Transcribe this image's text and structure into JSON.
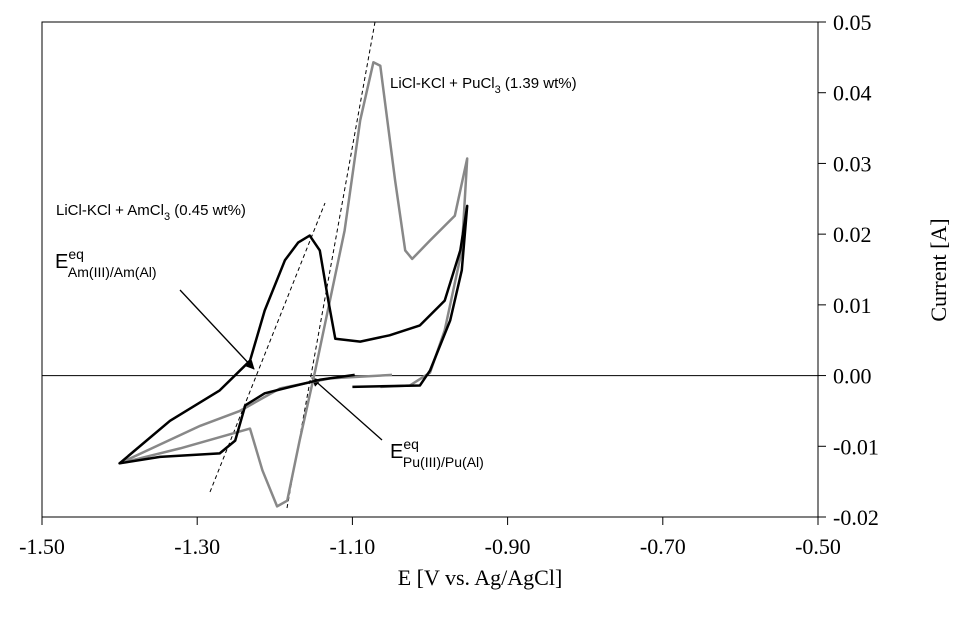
{
  "chart_data": {
    "type": "line",
    "xlabel": "E [V vs. Ag/AgCl]",
    "ylabel": "Current  [A]",
    "xlim": [
      -1.5,
      -0.5
    ],
    "xticks": [
      {
        "value": -1.5,
        "label": "-1.50"
      },
      {
        "value": -1.3,
        "label": "-1.30"
      },
      {
        "value": -1.1,
        "label": "-1.10"
      },
      {
        "value": -0.9,
        "label": "-0.90"
      },
      {
        "value": -0.7,
        "label": "-0.70"
      },
      {
        "value": -0.5,
        "label": "-0.50"
      }
    ],
    "ylim": [
      -0.02,
      0.05
    ],
    "yticks": [
      -0.02,
      -0.01,
      {
        "value": 0,
        "label": "0.00"
      },
      0.01,
      0.02,
      0.03,
      0.04,
      0.05
    ],
    "series": [
      {
        "color": "#888888",
        "x": [
          -1.049,
          -1.129,
          -1.193,
          -1.245,
          -1.296,
          -1.4,
          -1.322,
          -1.232,
          -1.216,
          -1.197,
          -1.184,
          -1.168,
          -1.148,
          -1.129,
          -1.11,
          -1.09,
          -1.073,
          -1.064,
          -1.045,
          -1.032,
          -1.023,
          -1.0,
          -0.968,
          -0.952,
          -0.959,
          -0.981,
          -1.0,
          -1.026,
          -1.064
        ],
        "values": [
          0.0001,
          -0.0004,
          -0.0018,
          -0.005,
          -0.0071,
          -0.0124,
          -0.0103,
          -0.0075,
          -0.0134,
          -0.0185,
          -0.0177,
          -0.0092,
          0.0007,
          0.0106,
          0.0205,
          0.0361,
          0.0443,
          0.0438,
          0.0276,
          0.0177,
          0.0165,
          0.0191,
          0.0226,
          0.0307,
          0.0177,
          0.0064,
          0.0004,
          -0.0014,
          -0.0016
        ]
      },
      {
        "color": "#000000",
        "x": [
          -1.1,
          -1.013,
          -1.0,
          -0.974,
          -0.959,
          -0.952,
          -0.961,
          -0.981,
          -1.013,
          -1.052,
          -1.09,
          -1.122,
          -1.131,
          -1.142,
          -1.155,
          -1.17,
          -1.187,
          -1.213,
          -1.232,
          -1.271,
          -1.335,
          -1.4,
          -1.348,
          -1.271,
          -1.251,
          -1.238,
          -1.213,
          -1.18,
          -1.142,
          -1.097
        ],
        "values": [
          -0.0016,
          -0.0014,
          0.0007,
          0.0078,
          0.0149,
          0.024,
          0.0177,
          0.0106,
          0.0071,
          0.0057,
          0.0048,
          0.0052,
          0.0106,
          0.0177,
          0.0198,
          0.0188,
          0.0163,
          0.0092,
          0.0021,
          -0.0021,
          -0.0064,
          -0.0124,
          -0.0115,
          -0.011,
          -0.0092,
          -0.0042,
          -0.0025,
          -0.0016,
          -0.0006,
          0.0001
        ]
      }
    ],
    "annotations": [
      {
        "parts": [
          "LiCl-KCl + PuCl",
          "3",
          " (1.39 wt%)"
        ]
      },
      {
        "parts": [
          "LiCl-KCl + AmCl",
          "3",
          " (0.45 wt%)"
        ]
      },
      {
        "parts": [
          "E",
          "eq",
          "Am(III)/Am(Al)"
        ]
      },
      {
        "parts": [
          "E",
          "eq",
          "Pu(III)/Pu(Al)"
        ]
      }
    ]
  }
}
